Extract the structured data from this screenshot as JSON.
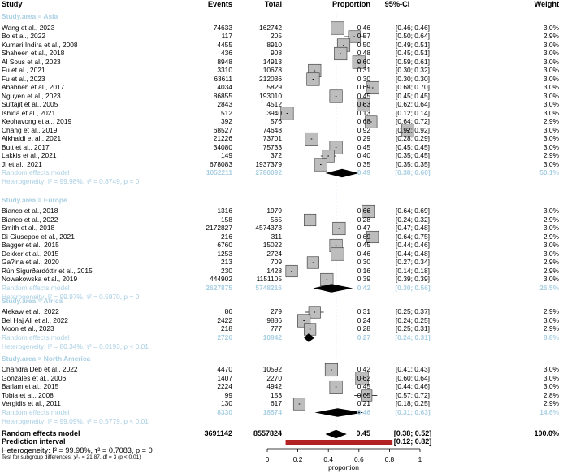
{
  "headers": {
    "study": "Study",
    "events": "Events",
    "total": "Total",
    "proportion": "Proportion",
    "ci": "95%-CI",
    "weight": "Weight"
  },
  "chart_data": {
    "type": "forest",
    "xlabel": "proportion",
    "xlim": [
      0,
      1
    ],
    "xticks": [
      "0",
      "0.2",
      "0.4",
      "0.6",
      "0.8",
      "1"
    ],
    "null_line": 0.45,
    "groups": [
      {
        "label": "Study.area = Asia",
        "studies": [
          {
            "study": "Wang et al., 2023",
            "events": "74633",
            "total": "162742",
            "p": 0.46,
            "lo": 0.46,
            "hi": 0.46,
            "prop": "0.46",
            "ci": "[0.46; 0.46]",
            "weight": "3.0%"
          },
          {
            "study": "Bo et al., 2022",
            "events": "117",
            "total": "205",
            "p": 0.57,
            "lo": 0.5,
            "hi": 0.64,
            "prop": "0.57",
            "ci": "[0.50; 0.64]",
            "weight": "2.9%"
          },
          {
            "study": "Kumari Indira et al., 2008",
            "events": "4455",
            "total": "8910",
            "p": 0.5,
            "lo": 0.49,
            "hi": 0.51,
            "prop": "0.50",
            "ci": "[0.49; 0.51]",
            "weight": "3.0%"
          },
          {
            "study": "Shaheen et al., 2018",
            "events": "436",
            "total": "908",
            "p": 0.48,
            "lo": 0.45,
            "hi": 0.51,
            "prop": "0.48",
            "ci": "[0.45; 0.51]",
            "weight": "3.0%"
          },
          {
            "study": "Al Sous et al., 2023",
            "events": "8948",
            "total": "14913",
            "p": 0.6,
            "lo": 0.59,
            "hi": 0.61,
            "prop": "0.60",
            "ci": "[0.59; 0.61]",
            "weight": "3.0%"
          },
          {
            "study": "Fu et al., 2021",
            "events": "3310",
            "total": "10678",
            "p": 0.31,
            "lo": 0.3,
            "hi": 0.32,
            "prop": "0.31",
            "ci": "[0.30; 0.32]",
            "weight": "3.0%"
          },
          {
            "study": "Fu et al., 2023",
            "events": "63611",
            "total": "212036",
            "p": 0.3,
            "lo": 0.3,
            "hi": 0.3,
            "prop": "0.30",
            "ci": "[0.30; 0.30]",
            "weight": "3.0%"
          },
          {
            "study": "Ababneh et al., 2017",
            "events": "4034",
            "total": "5829",
            "p": 0.69,
            "lo": 0.68,
            "hi": 0.7,
            "prop": "0.69",
            "ci": "[0.68; 0.70]",
            "weight": "3.0%"
          },
          {
            "study": "Nguyen et al., 2023",
            "events": "86855",
            "total": "193010",
            "p": 0.45,
            "lo": 0.45,
            "hi": 0.45,
            "prop": "0.45",
            "ci": "[0.45; 0.45]",
            "weight": "3.0%"
          },
          {
            "study": "Suttajit et al., 2005",
            "events": "2843",
            "total": "4512",
            "p": 0.63,
            "lo": 0.62,
            "hi": 0.64,
            "prop": "0.63",
            "ci": "[0.62; 0.64]",
            "weight": "3.0%"
          },
          {
            "study": "Ishida et al., 2021",
            "events": "512",
            "total": "3940",
            "p": 0.13,
            "lo": 0.12,
            "hi": 0.14,
            "prop": "0.13",
            "ci": "[0.12; 0.14]",
            "weight": "3.0%"
          },
          {
            "study": "Keohavong et al., 2019",
            "events": "392",
            "total": "576",
            "p": 0.68,
            "lo": 0.64,
            "hi": 0.72,
            "prop": "0.68",
            "ci": "[0.64; 0.72]",
            "weight": "2.9%"
          },
          {
            "study": "Chang et al., 2019",
            "events": "68527",
            "total": "74648",
            "p": 0.92,
            "lo": 0.92,
            "hi": 0.92,
            "prop": "0.92",
            "ci": "[0.92; 0.92]",
            "weight": "3.0%"
          },
          {
            "study": "Alkhaldi et al., 2021",
            "events": "21226",
            "total": "73701",
            "p": 0.29,
            "lo": 0.28,
            "hi": 0.29,
            "prop": "0.29",
            "ci": "[0.28; 0.29]",
            "weight": "3.0%"
          },
          {
            "study": "Butt et al., 2017",
            "events": "34080",
            "total": "75733",
            "p": 0.45,
            "lo": 0.45,
            "hi": 0.45,
            "prop": "0.45",
            "ci": "[0.45; 0.45]",
            "weight": "3.0%"
          },
          {
            "study": "Lakkis et al., 2021",
            "events": "149",
            "total": "372",
            "p": 0.4,
            "lo": 0.35,
            "hi": 0.45,
            "prop": "0.40",
            "ci": "[0.35; 0.45]",
            "weight": "2.9%"
          },
          {
            "study": "Ji et al., 2021",
            "events": "678083",
            "total": "1937379",
            "p": 0.35,
            "lo": 0.35,
            "hi": 0.35,
            "prop": "0.35",
            "ci": "[0.35; 0.35]",
            "weight": "3.0%"
          }
        ],
        "summary": {
          "label": "Random effects model",
          "events": "1052211",
          "total": "2780092",
          "p": 0.49,
          "lo": 0.38,
          "hi": 0.6,
          "prop": "0.49",
          "ci": "[0.38; 0.60]",
          "weight": "50.1%"
        },
        "heterogeneity": "Heterogeneity: I² = 99.98%, τ² = 0.8749, p = 0"
      },
      {
        "label": "Study.area = Europe",
        "studies": [
          {
            "study": "Bianco et al., 2018",
            "events": "1316",
            "total": "1979",
            "p": 0.66,
            "lo": 0.64,
            "hi": 0.69,
            "prop": "0.66",
            "ci": "[0.64; 0.69]",
            "weight": "3.0%"
          },
          {
            "study": "Bianco et al., 2022",
            "events": "158",
            "total": "565",
            "p": 0.28,
            "lo": 0.24,
            "hi": 0.32,
            "prop": "0.28",
            "ci": "[0.24; 0.32]",
            "weight": "2.9%"
          },
          {
            "study": "Smith et al., 2018",
            "events": "2172827",
            "total": "4574373",
            "p": 0.47,
            "lo": 0.47,
            "hi": 0.48,
            "prop": "0.47",
            "ci": "[0.47; 0.48]",
            "weight": "3.0%"
          },
          {
            "study": "Di Giuseppe et al., 2021",
            "events": "216",
            "total": "311",
            "p": 0.69,
            "lo": 0.64,
            "hi": 0.75,
            "prop": "0.69",
            "ci": "[0.64; 0.75]",
            "weight": "2.9%"
          },
          {
            "study": "Bagger et al., 2015",
            "events": "6760",
            "total": "15022",
            "p": 0.45,
            "lo": 0.44,
            "hi": 0.46,
            "prop": "0.45",
            "ci": "[0.44; 0.46]",
            "weight": "3.0%"
          },
          {
            "study": "Dekker et al., 2015",
            "events": "1253",
            "total": "2724",
            "p": 0.46,
            "lo": 0.44,
            "hi": 0.48,
            "prop": "0.46",
            "ci": "[0.44; 0.48]",
            "weight": "3.0%"
          },
          {
            "study": "Ga?ina et al., 2020",
            "events": "213",
            "total": "709",
            "p": 0.3,
            "lo": 0.27,
            "hi": 0.34,
            "prop": "0.30",
            "ci": "[0.27; 0.34]",
            "weight": "2.9%"
          },
          {
            "study": "Rún Sigurðardóttir et al., 2015",
            "events": "230",
            "total": "1428",
            "p": 0.16,
            "lo": 0.14,
            "hi": 0.18,
            "prop": "0.16",
            "ci": "[0.14; 0.18]",
            "weight": "2.9%"
          },
          {
            "study": "Nowakowska et al., 2019",
            "events": "444902",
            "total": "1151105",
            "p": 0.39,
            "lo": 0.39,
            "hi": 0.39,
            "prop": "0.39",
            "ci": "[0.39; 0.39]",
            "weight": "3.0%"
          }
        ],
        "summary": {
          "label": "Random effects model",
          "events": "2627875",
          "total": "5748216",
          "p": 0.42,
          "lo": 0.3,
          "hi": 0.56,
          "prop": "0.42",
          "ci": "[0.30; 0.56]",
          "weight": "26.5%"
        },
        "heterogeneity": "Heterogeneity: I² = 99.97%, τ² = 0.5970, p = 0"
      },
      {
        "label": "Study.area = Africa",
        "studies": [
          {
            "study": "Alekaw et al., 2022",
            "events": "86",
            "total": "279",
            "p": 0.31,
            "lo": 0.25,
            "hi": 0.37,
            "prop": "0.31",
            "ci": "[0.25; 0.37]",
            "weight": "2.9%"
          },
          {
            "study": "Bel Haj Ali et al., 2022",
            "events": "2422",
            "total": "9886",
            "p": 0.24,
            "lo": 0.24,
            "hi": 0.25,
            "prop": "0.24",
            "ci": "[0.24; 0.25]",
            "weight": "3.0%"
          },
          {
            "study": "Moon et al., 2023",
            "events": "218",
            "total": "777",
            "p": 0.28,
            "lo": 0.25,
            "hi": 0.31,
            "prop": "0.28",
            "ci": "[0.25; 0.31]",
            "weight": "2.9%"
          }
        ],
        "summary": {
          "label": "Random effects model",
          "events": "2726",
          "total": "10942",
          "p": 0.27,
          "lo": 0.24,
          "hi": 0.31,
          "prop": "0.27",
          "ci": "[0.24; 0.31]",
          "weight": "8.8%"
        },
        "heterogeneity": "Heterogeneity: I² = 80.34%, τ² = 0.0193, p < 0.01"
      },
      {
        "label": "Study.area = North America",
        "studies": [
          {
            "study": "Chandra Deb et al., 2022",
            "events": "4470",
            "total": "10592",
            "p": 0.42,
            "lo": 0.41,
            "hi": 0.43,
            "prop": "0.42",
            "ci": "[0.41; 0.43]",
            "weight": "3.0%"
          },
          {
            "study": "Gonzales et al., 2006",
            "events": "1407",
            "total": "2270",
            "p": 0.62,
            "lo": 0.6,
            "hi": 0.64,
            "prop": "0.62",
            "ci": "[0.60; 0.64]",
            "weight": "3.0%"
          },
          {
            "study": "Barlam et al., 2015",
            "events": "2224",
            "total": "4942",
            "p": 0.45,
            "lo": 0.44,
            "hi": 0.46,
            "prop": "0.45",
            "ci": "[0.44; 0.46]",
            "weight": "3.0%"
          },
          {
            "study": "Tobia et al., 2008",
            "events": "99",
            "total": "153",
            "p": 0.65,
            "lo": 0.57,
            "hi": 0.72,
            "prop": "0.65",
            "ci": "[0.57; 0.72]",
            "weight": "2.8%"
          },
          {
            "study": "Vergidis et al., 2011",
            "events": "130",
            "total": "617",
            "p": 0.21,
            "lo": 0.18,
            "hi": 0.25,
            "prop": "0.21",
            "ci": "[0.18; 0.25]",
            "weight": "2.9%"
          }
        ],
        "summary": {
          "label": "Random effects model",
          "events": "8330",
          "total": "18574",
          "p": 0.46,
          "lo": 0.31,
          "hi": 0.63,
          "prop": "0.46",
          "ci": "[0.31; 0.63]",
          "weight": "14.6%"
        },
        "heterogeneity": "Heterogeneity: I² = 99.09%, τ² = 0.5779, p < 0.01"
      }
    ],
    "overall": {
      "label": "Random effects model",
      "events": "3691142",
      "total": "8557824",
      "p": 0.45,
      "lo": 0.38,
      "hi": 0.52,
      "prop": "0.45",
      "ci": "[0.38; 0.52]",
      "weight": "100.0%"
    },
    "prediction": {
      "label": "Prediction interval",
      "lo": 0.12,
      "hi": 0.82,
      "ci": "[0.12; 0.82]"
    },
    "heterogeneity": "Heterogeneity: I² = 99.98%, τ² = 0.7083, p = 0",
    "subgroup_test": "Test for subgroup differences: χ²₃ = 21.87, df = 3 (p < 0.01)",
    "colors": {
      "summary_text": "#a9cfe3",
      "box": "#bdbdbd",
      "prediction": "#b22222",
      "null_line": "#3333cc"
    }
  }
}
